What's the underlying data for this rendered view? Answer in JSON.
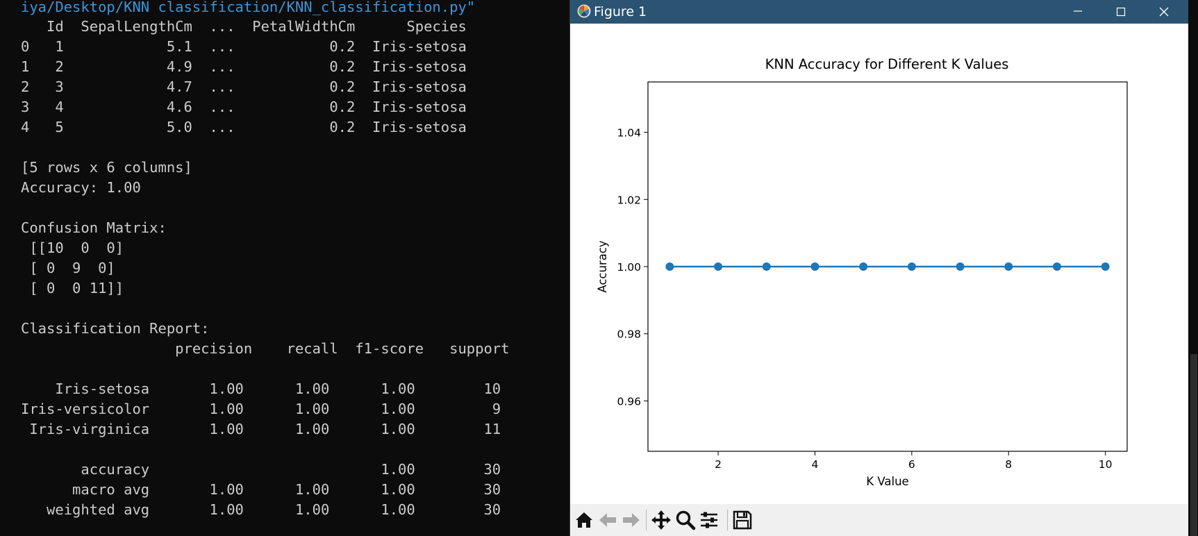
{
  "terminal": {
    "path_line": "iya/Desktop/KNN classification/KNN_classification.py\"",
    "lines": [
      "   Id  SepalLengthCm  ...  PetalWidthCm      Species",
      "0   1            5.1  ...           0.2  Iris-setosa",
      "1   2            4.9  ...           0.2  Iris-setosa",
      "2   3            4.7  ...           0.2  Iris-setosa",
      "3   4            4.6  ...           0.2  Iris-setosa",
      "4   5            5.0  ...           0.2  Iris-setosa",
      "",
      "[5 rows x 6 columns]",
      "Accuracy: 1.00",
      "",
      "Confusion Matrix:",
      " [[10  0  0]",
      " [ 0  9  0]",
      " [ 0  0 11]]",
      "",
      "Classification Report:",
      "                  precision    recall  f1-score   support",
      "",
      "    Iris-setosa       1.00      1.00      1.00        10",
      "Iris-versicolor       1.00      1.00      1.00         9",
      " Iris-virginica       1.00      1.00      1.00        11",
      "",
      "       accuracy                           1.00        30",
      "      macro avg       1.00      1.00      1.00        30",
      "   weighted avg       1.00      1.00      1.00        30"
    ]
  },
  "figure_window": {
    "title": "Figure 1",
    "titlebar_color": "#2b5472",
    "controls": {
      "minimize": "minimize-icon",
      "maximize": "maximize-icon",
      "close": "close-icon"
    },
    "toolbar": [
      "home-icon",
      "back-arrow-icon",
      "forward-arrow-icon",
      "pan-icon",
      "zoom-icon",
      "configure-subplots-icon",
      "save-icon"
    ]
  },
  "chart_data": {
    "type": "line",
    "title": "KNN Accuracy for Different K Values",
    "xlabel": "K Value",
    "ylabel": "Accuracy",
    "x": [
      1,
      2,
      3,
      4,
      5,
      6,
      7,
      8,
      9,
      10
    ],
    "series": [
      {
        "values": [
          1.0,
          1.0,
          1.0,
          1.0,
          1.0,
          1.0,
          1.0,
          1.0,
          1.0,
          1.0
        ],
        "color": "#1f77b4",
        "marker": "circle"
      }
    ],
    "xlim": [
      0.55,
      10.45
    ],
    "ylim": [
      0.945,
      1.055
    ],
    "xticks": [
      2,
      4,
      6,
      8,
      10
    ],
    "xtick_labels": [
      "2",
      "4",
      "6",
      "8",
      "10"
    ],
    "yticks": [
      0.96,
      0.98,
      1.0,
      1.02,
      1.04
    ],
    "ytick_labels": [
      "0.96",
      "0.98",
      "1.00",
      "1.02",
      "1.04"
    ],
    "grid": false,
    "legend": "none"
  }
}
